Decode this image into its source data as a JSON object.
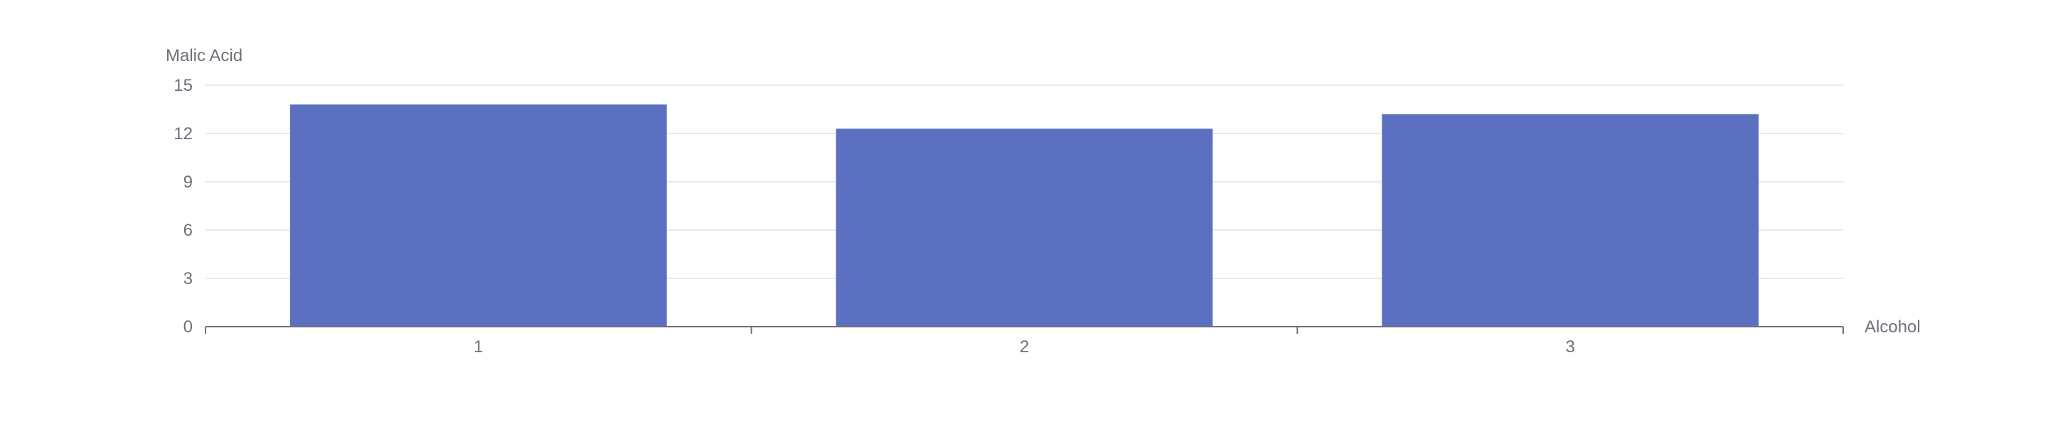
{
  "chart_data": {
    "type": "bar",
    "categories": [
      "1",
      "2",
      "3"
    ],
    "values": [
      13.8,
      12.3,
      13.2
    ],
    "xlabel": "Alcohol",
    "ylabel": "Malic Acid",
    "ylim": [
      0,
      15
    ],
    "yticks": [
      0,
      3,
      6,
      9,
      12,
      15
    ],
    "grid": true,
    "legend": "none"
  },
  "colors": {
    "bar": "#5b70c1",
    "grid": "#e0e3ea",
    "axis": "#6e7079",
    "text": "#6e7079"
  }
}
